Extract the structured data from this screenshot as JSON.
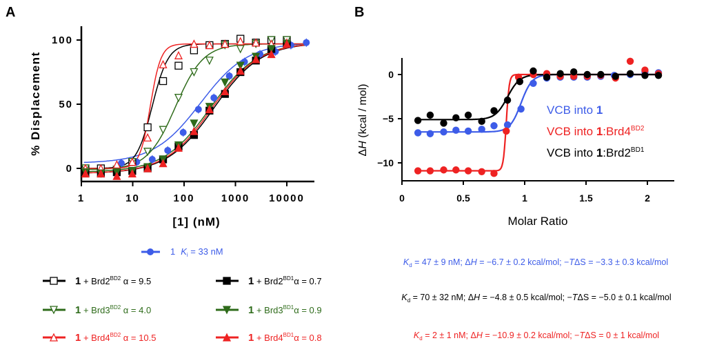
{
  "panel_labels": {
    "a": "A",
    "b": "B"
  },
  "colors": {
    "black": "#000000",
    "green": "#2e6b1a",
    "red": "#ee2222",
    "blue": "#3d5ce8"
  },
  "chart_data": [
    {
      "type": "scatter",
      "panel": "A",
      "xlabel": "[1]  (nM)",
      "ylabel": "% Displacement",
      "xscale": "log",
      "xlim": [
        1,
        30000
      ],
      "ylim": [
        -10,
        110
      ],
      "xticks": [
        1,
        10,
        100,
        1000,
        10000
      ],
      "xtick_labels": [
        "1",
        "10",
        "100",
        "1000",
        "10000"
      ],
      "yticks": [
        0,
        50,
        100
      ],
      "ytick_labels": [
        "0",
        "50",
        "100"
      ],
      "grid": false,
      "legend_placement": "below",
      "series": [
        {
          "key": "blue",
          "color": "#3d5ce8",
          "marker": "filled-circle",
          "x": [
            6,
            12,
            24,
            48,
            96,
            190,
            380,
            760,
            1500,
            3000,
            6000,
            12000,
            24000
          ],
          "y": [
            4,
            5,
            7,
            14,
            28,
            46,
            55,
            72,
            83,
            89,
            91,
            96,
            98
          ]
        },
        {
          "key": "brd2bd2",
          "color": "#000000",
          "marker": "open-square",
          "x": [
            1.2,
            2.4,
            4.9,
            9.8,
            19.5,
            39,
            78,
            156,
            312,
            625,
            1250,
            2500,
            5000,
            10000
          ],
          "y": [
            0,
            0,
            -1,
            5,
            32,
            68,
            80,
            92,
            96,
            97,
            101,
            98,
            100,
            100
          ]
        },
        {
          "key": "brd3bd2",
          "color": "#2e6b1a",
          "marker": "open-triangle-down",
          "x": [
            1.2,
            4.9,
            9.8,
            19.5,
            39,
            78,
            156,
            312,
            625,
            1250,
            2500,
            5000,
            10000
          ],
          "y": [
            0,
            -1,
            5,
            13,
            30,
            55,
            75,
            84,
            96,
            93,
            97,
            100,
            100
          ]
        },
        {
          "key": "brd4bd2",
          "color": "#ee2222",
          "marker": "open-triangle-up",
          "x": [
            1.2,
            2.4,
            4.9,
            9.8,
            19.5,
            39,
            78,
            156,
            312,
            625,
            1250,
            2500,
            5000,
            10000
          ],
          "y": [
            0,
            0,
            3,
            5,
            24,
            81,
            88,
            97,
            96,
            97,
            99,
            98,
            97,
            98
          ]
        },
        {
          "key": "brd2bd1",
          "color": "#000000",
          "marker": "filled-square",
          "x": [
            1.2,
            2.4,
            4.9,
            9.8,
            19.5,
            39,
            78,
            156,
            312,
            625,
            1250,
            2500,
            5000,
            10000
          ],
          "y": [
            -4,
            -4,
            -3,
            -2,
            0,
            7,
            17,
            26,
            45,
            58,
            75,
            84,
            93,
            97
          ]
        },
        {
          "key": "brd3bd1",
          "color": "#2e6b1a",
          "marker": "filled-triangle-down",
          "x": [
            1.2,
            2.4,
            4.9,
            9.8,
            19.5,
            39,
            78,
            156,
            312,
            625,
            1250,
            2500,
            5000,
            10000
          ],
          "y": [
            -3,
            -4,
            -3,
            -2,
            1,
            7,
            18,
            35,
            48,
            67,
            80,
            87,
            93,
            97
          ]
        },
        {
          "key": "brd4bd1",
          "color": "#ee2222",
          "marker": "filled-triangle-up",
          "x": [
            1.2,
            2.4,
            4.9,
            9.8,
            19.5,
            39,
            78,
            156,
            312,
            625,
            1250,
            2500,
            5000,
            10000
          ],
          "y": [
            -4,
            -4,
            -6,
            -4,
            0,
            4,
            16,
            29,
            46,
            60,
            76,
            85,
            89,
            97
          ]
        }
      ]
    },
    {
      "type": "scatter",
      "panel": "B",
      "xlabel": "Molar Ratio",
      "ylabel_delta": "Δ",
      "ylabel_italic": "H",
      "ylabel_unit": " (kcal / mol)",
      "xlim": [
        0,
        2.2
      ],
      "ylim": [
        -12,
        1.8
      ],
      "xticks": [
        0,
        0.5,
        1,
        1.5,
        2
      ],
      "xtick_labels": [
        "0",
        "0.5",
        "1",
        "1.5",
        "2"
      ],
      "yticks": [
        0,
        -5,
        -10
      ],
      "ytick_labels": [
        "0",
        "−5",
        "−10"
      ],
      "grid": false,
      "legend_placement": "right",
      "series": [
        {
          "key": "vcb1",
          "color": "#3d5ce8",
          "label": "VCB into ",
          "bold": "1",
          "protein": "",
          "sup": "",
          "x": [
            0.13,
            0.23,
            0.34,
            0.44,
            0.54,
            0.65,
            0.75,
            0.86,
            0.97,
            1.07,
            1.18,
            1.29,
            1.4,
            1.51,
            1.62,
            1.73,
            1.86,
            1.98,
            2.09
          ],
          "y": [
            -6.6,
            -6.7,
            -6.5,
            -6.3,
            -6.4,
            -6.2,
            -5.8,
            -5.7,
            -3.9,
            -1.0,
            -0.4,
            -0.3,
            -0.3,
            -0.3,
            -0.2,
            -0.1,
            0,
            0.3,
            0.2
          ]
        },
        {
          "key": "vcb1brd4",
          "color": "#ee2222",
          "label": "VCB into ",
          "bold": "1",
          "protein": ":Brd4",
          "sup": "BD2",
          "x": [
            0.13,
            0.23,
            0.34,
            0.44,
            0.54,
            0.65,
            0.75,
            0.85,
            0.95,
            1.07,
            1.18,
            1.29,
            1.4,
            1.51,
            1.62,
            1.74,
            1.86,
            1.98,
            2.09
          ],
          "y": [
            -10.9,
            -10.9,
            -10.8,
            -10.8,
            -10.9,
            -11.0,
            -11.2,
            -6.4,
            -0.3,
            0,
            0.1,
            -0.2,
            -0.2,
            -0.2,
            -0.1,
            -0.4,
            1.5,
            0.5,
            0.1
          ]
        },
        {
          "key": "vcb1brd2",
          "color": "#000000",
          "label": "VCB into ",
          "bold": "1",
          "protein": ":Brd2",
          "sup": "BD1",
          "x": [
            0.13,
            0.23,
            0.34,
            0.44,
            0.54,
            0.65,
            0.75,
            0.86,
            0.96,
            1.07,
            1.18,
            1.29,
            1.4,
            1.51,
            1.62,
            1.74,
            1.86,
            1.98,
            2.09
          ],
          "y": [
            -5.2,
            -4.6,
            -5.5,
            -4.9,
            -4.6,
            -5.3,
            -4.1,
            -2.9,
            -0.8,
            0.4,
            -0.3,
            0.1,
            0.3,
            0,
            0,
            -0.2,
            0.1,
            -0.1,
            -0.1
          ]
        }
      ]
    }
  ],
  "legend_a": {
    "blue": {
      "num": "1",
      "k": "K",
      "sub": "i",
      "value": " = 33 nM"
    },
    "entries": [
      {
        "key": "brd2bd2",
        "num": "1",
        "plus": " + Brd2",
        "sup": "BD2",
        "alpha": " α = 9.5"
      },
      {
        "key": "brd2bd1",
        "num": "1",
        "plus": " + Brd2",
        "sup": "BD1",
        "alpha": "α = 0.7"
      },
      {
        "key": "brd3bd2",
        "num": "1",
        "plus": " + Brd3",
        "sup": "BD2",
        "alpha": " α = 4.0"
      },
      {
        "key": "brd3bd1",
        "num": "1",
        "plus": " + Brd3",
        "sup": "BD1",
        "alpha": "α = 0.9"
      },
      {
        "key": "brd4bd2",
        "num": "1",
        "plus": " + Brd4",
        "sup": "BD2",
        "alpha": " α = 10.5"
      },
      {
        "key": "brd4bd1",
        "num": "1",
        "plus": " + Brd4",
        "sup": "BD1",
        "alpha": "α = 0.8"
      }
    ]
  },
  "itc_results": [
    {
      "color": "#3d5ce8",
      "k": "K",
      "sub": "d",
      "kd": " = 47 ± 9 nM; Δ",
      "h": "H",
      "dh": " = −6.7 ± 0.2 kcal/mol; −",
      "t": "T",
      "tds": "ΔS = −3.3 ± 0.3 kcal/mol"
    },
    {
      "color": "#000000",
      "k": "K",
      "sub": "d",
      "kd": " = 70 ± 32 nM; Δ",
      "h": "H",
      "dh": " = −4.8 ± 0.5 kcal/mol; −",
      "t": "T",
      "tds": "ΔS = −5.0 ± 0.1 kcal/mol"
    },
    {
      "color": "#ee2222",
      "k": "K",
      "sub": "d",
      "kd": " = 2 ± 1 nM; Δ",
      "h": "H",
      "dh": " = −10.9 ± 0.2 kcal/mol; −",
      "t": "T",
      "tds": "ΔS = 0 ± 1 kcal/mol"
    }
  ]
}
